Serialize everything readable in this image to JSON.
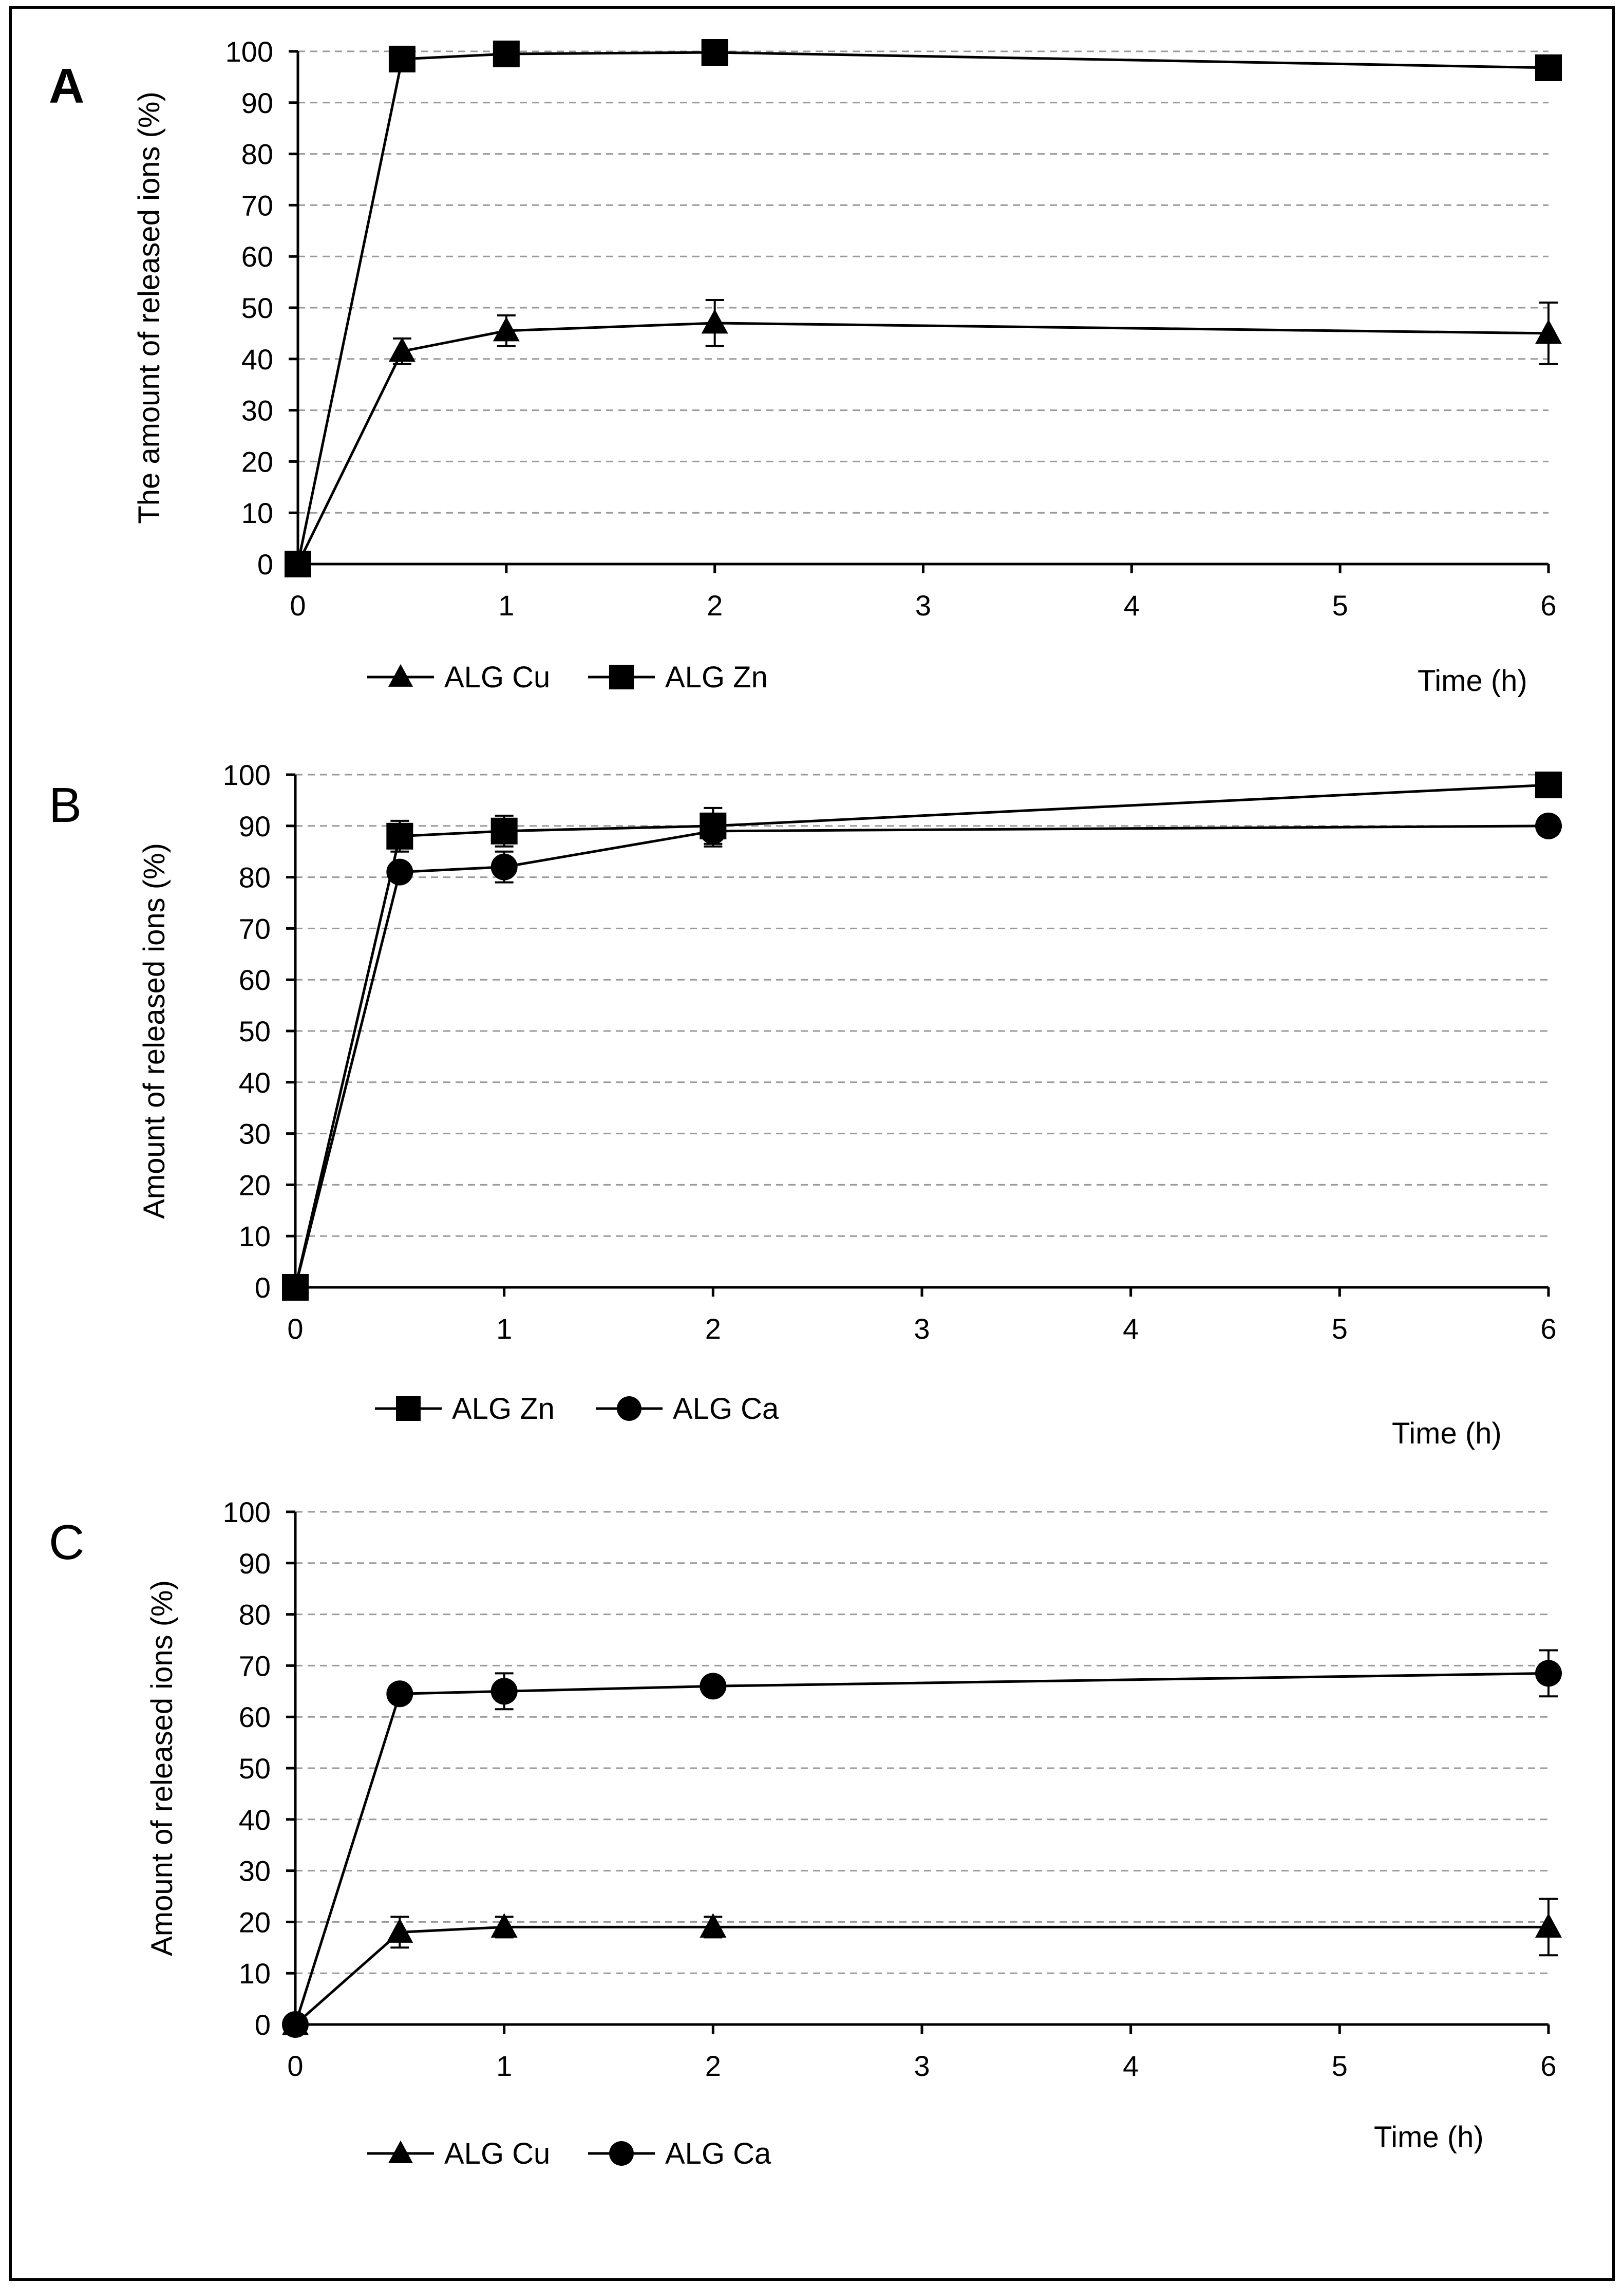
{
  "chart_data": [
    {
      "type": "line",
      "panel": "A",
      "title": "",
      "xlabel": "Time (h)",
      "ylabel": "The amount of released ions (%)",
      "xlim": [
        0,
        6
      ],
      "ylim": [
        0,
        100
      ],
      "xticks": [
        0,
        1,
        2,
        3,
        4,
        5,
        6
      ],
      "yticks": [
        0,
        10,
        20,
        30,
        40,
        50,
        60,
        70,
        80,
        90,
        100
      ],
      "grid": "horizontal dashed",
      "legend_position": "bottom-left",
      "series": [
        {
          "name": "ALG Cu",
          "marker": "triangle",
          "x": [
            0,
            0.5,
            1,
            2,
            6
          ],
          "values": [
            0,
            41.5,
            45.5,
            47,
            45
          ],
          "errors": [
            0,
            2.5,
            3,
            4.5,
            6
          ]
        },
        {
          "name": "ALG Zn",
          "marker": "square",
          "x": [
            0,
            0.5,
            1,
            2,
            6
          ],
          "values": [
            0,
            98.5,
            99.5,
            99.8,
            96.8
          ],
          "errors": [
            0,
            0,
            0,
            0,
            0
          ]
        }
      ]
    },
    {
      "type": "line",
      "panel": "B",
      "title": "",
      "xlabel": "Time (h)",
      "ylabel": "Amount of released ions (%)",
      "xlim": [
        0,
        6
      ],
      "ylim": [
        0,
        100
      ],
      "xticks": [
        0,
        1,
        2,
        3,
        4,
        5,
        6
      ],
      "yticks": [
        0,
        10,
        20,
        30,
        40,
        50,
        60,
        70,
        80,
        90,
        100
      ],
      "grid": "horizontal dashed",
      "legend_position": "bottom-left",
      "series": [
        {
          "name": "ALG Zn",
          "marker": "square",
          "x": [
            0,
            0.5,
            1,
            2,
            6
          ],
          "values": [
            0,
            88,
            89,
            90,
            98
          ],
          "errors": [
            0,
            3,
            3,
            3.5,
            0
          ]
        },
        {
          "name": "ALG Ca",
          "marker": "circle",
          "x": [
            0,
            0.5,
            1,
            2,
            6
          ],
          "values": [
            0,
            81,
            82,
            89,
            90
          ],
          "errors": [
            0,
            1.5,
            3,
            3,
            0
          ]
        }
      ]
    },
    {
      "type": "line",
      "panel": "C",
      "title": "",
      "xlabel": "Time (h)",
      "ylabel": "Amount of released ions (%)",
      "xlim": [
        0,
        6
      ],
      "ylim": [
        0,
        100
      ],
      "xticks": [
        0,
        1,
        2,
        3,
        4,
        5,
        6
      ],
      "yticks": [
        0,
        10,
        20,
        30,
        40,
        50,
        60,
        70,
        80,
        90,
        100
      ],
      "grid": "horizontal dashed",
      "legend_position": "bottom-left",
      "series": [
        {
          "name": "ALG Cu",
          "marker": "triangle",
          "x": [
            0,
            0.5,
            1,
            2,
            6
          ],
          "values": [
            0,
            18,
            19,
            19,
            19
          ],
          "errors": [
            0,
            3,
            2,
            2,
            5.5
          ]
        },
        {
          "name": "ALG Ca",
          "marker": "circle",
          "x": [
            0,
            0.5,
            1,
            2,
            6
          ],
          "values": [
            0,
            64.5,
            65,
            66,
            68.5
          ],
          "errors": [
            0,
            0,
            3.5,
            0,
            4.5
          ]
        }
      ]
    }
  ]
}
